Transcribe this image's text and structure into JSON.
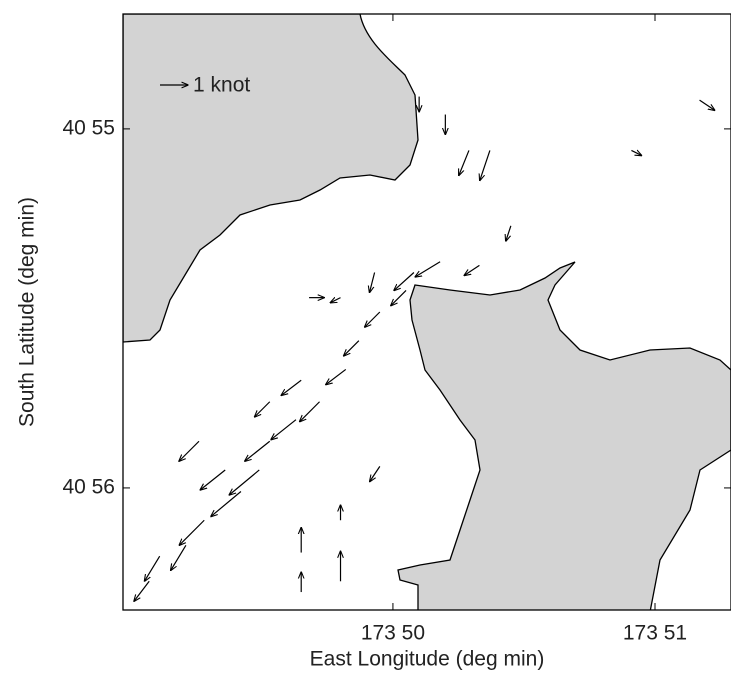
{
  "chart_data": {
    "type": "quiver",
    "xlabel": "East Longitude  (deg min)",
    "ylabel": "South Latitude  (deg min)",
    "legend": {
      "label": "1 knot",
      "value": 1
    },
    "xlim": [
      48.97,
      51.29
    ],
    "ylim": [
      56.34,
      54.68
    ],
    "xticks": [
      {
        "value": 50,
        "label": "173 50"
      },
      {
        "value": 51,
        "label": "173 51"
      }
    ],
    "yticks": [
      {
        "value": 55,
        "label": "40 55"
      },
      {
        "value": 56,
        "label": "40 56"
      }
    ],
    "color": "#000000",
    "land_color": "#d3d3d3",
    "x": [
      50.18,
      50.08,
      50.05,
      49.95,
      49.87,
      49.82,
      49.72,
      49.63,
      49.53,
      49.49,
      49.42,
      49.28,
      49.21,
      49.11,
      49.07,
      49.36,
      49.26,
      49.53,
      49.65,
      49.93,
      50.33,
      50.29,
      50.37,
      50.2,
      50.45,
      49.68,
      49.8,
      49.95,
      49.8,
      49.65,
      49.65,
      49.8,
      51.17,
      50.91,
      50.1
    ],
    "y": [
      55.37,
      55.4,
      55.45,
      55.51,
      55.59,
      55.67,
      55.76,
      55.81,
      55.87,
      55.95,
      56.01,
      56.09,
      56.16,
      56.19,
      56.26,
      55.95,
      55.87,
      55.76,
      55.7,
      55.4,
      55.38,
      55.06,
      55.06,
      54.96,
      55.27,
      55.47,
      55.47,
      55.94,
      56.09,
      56.18,
      56.29,
      56.26,
      54.92,
      55.06,
      54.91
    ],
    "u": [
      -0.89,
      -0.71,
      -0.54,
      -0.54,
      -0.54,
      -0.71,
      -0.71,
      -0.89,
      -0.89,
      -1.07,
      -1.07,
      -0.89,
      -0.54,
      -0.54,
      -0.54,
      -0.89,
      -0.71,
      -0.54,
      -0.71,
      -0.18,
      -0.54,
      -0.36,
      -0.36,
      0,
      -0.18,
      0.54,
      -0.36,
      -0.36,
      0,
      0,
      0,
      0,
      0.54,
      0.36,
      0
    ],
    "v": [
      -0.54,
      -0.64,
      -0.54,
      -0.54,
      -0.54,
      -0.54,
      -0.71,
      -0.71,
      -0.71,
      -0.89,
      -0.89,
      -0.89,
      -0.89,
      -0.89,
      -0.71,
      -0.71,
      -0.71,
      -0.54,
      -0.54,
      -0.71,
      -0.36,
      -0.89,
      -1.07,
      -0.71,
      -0.54,
      0,
      -0.18,
      -0.54,
      0.54,
      0.89,
      0.71,
      1.07,
      -0.36,
      -0.18,
      -0.54
    ]
  }
}
